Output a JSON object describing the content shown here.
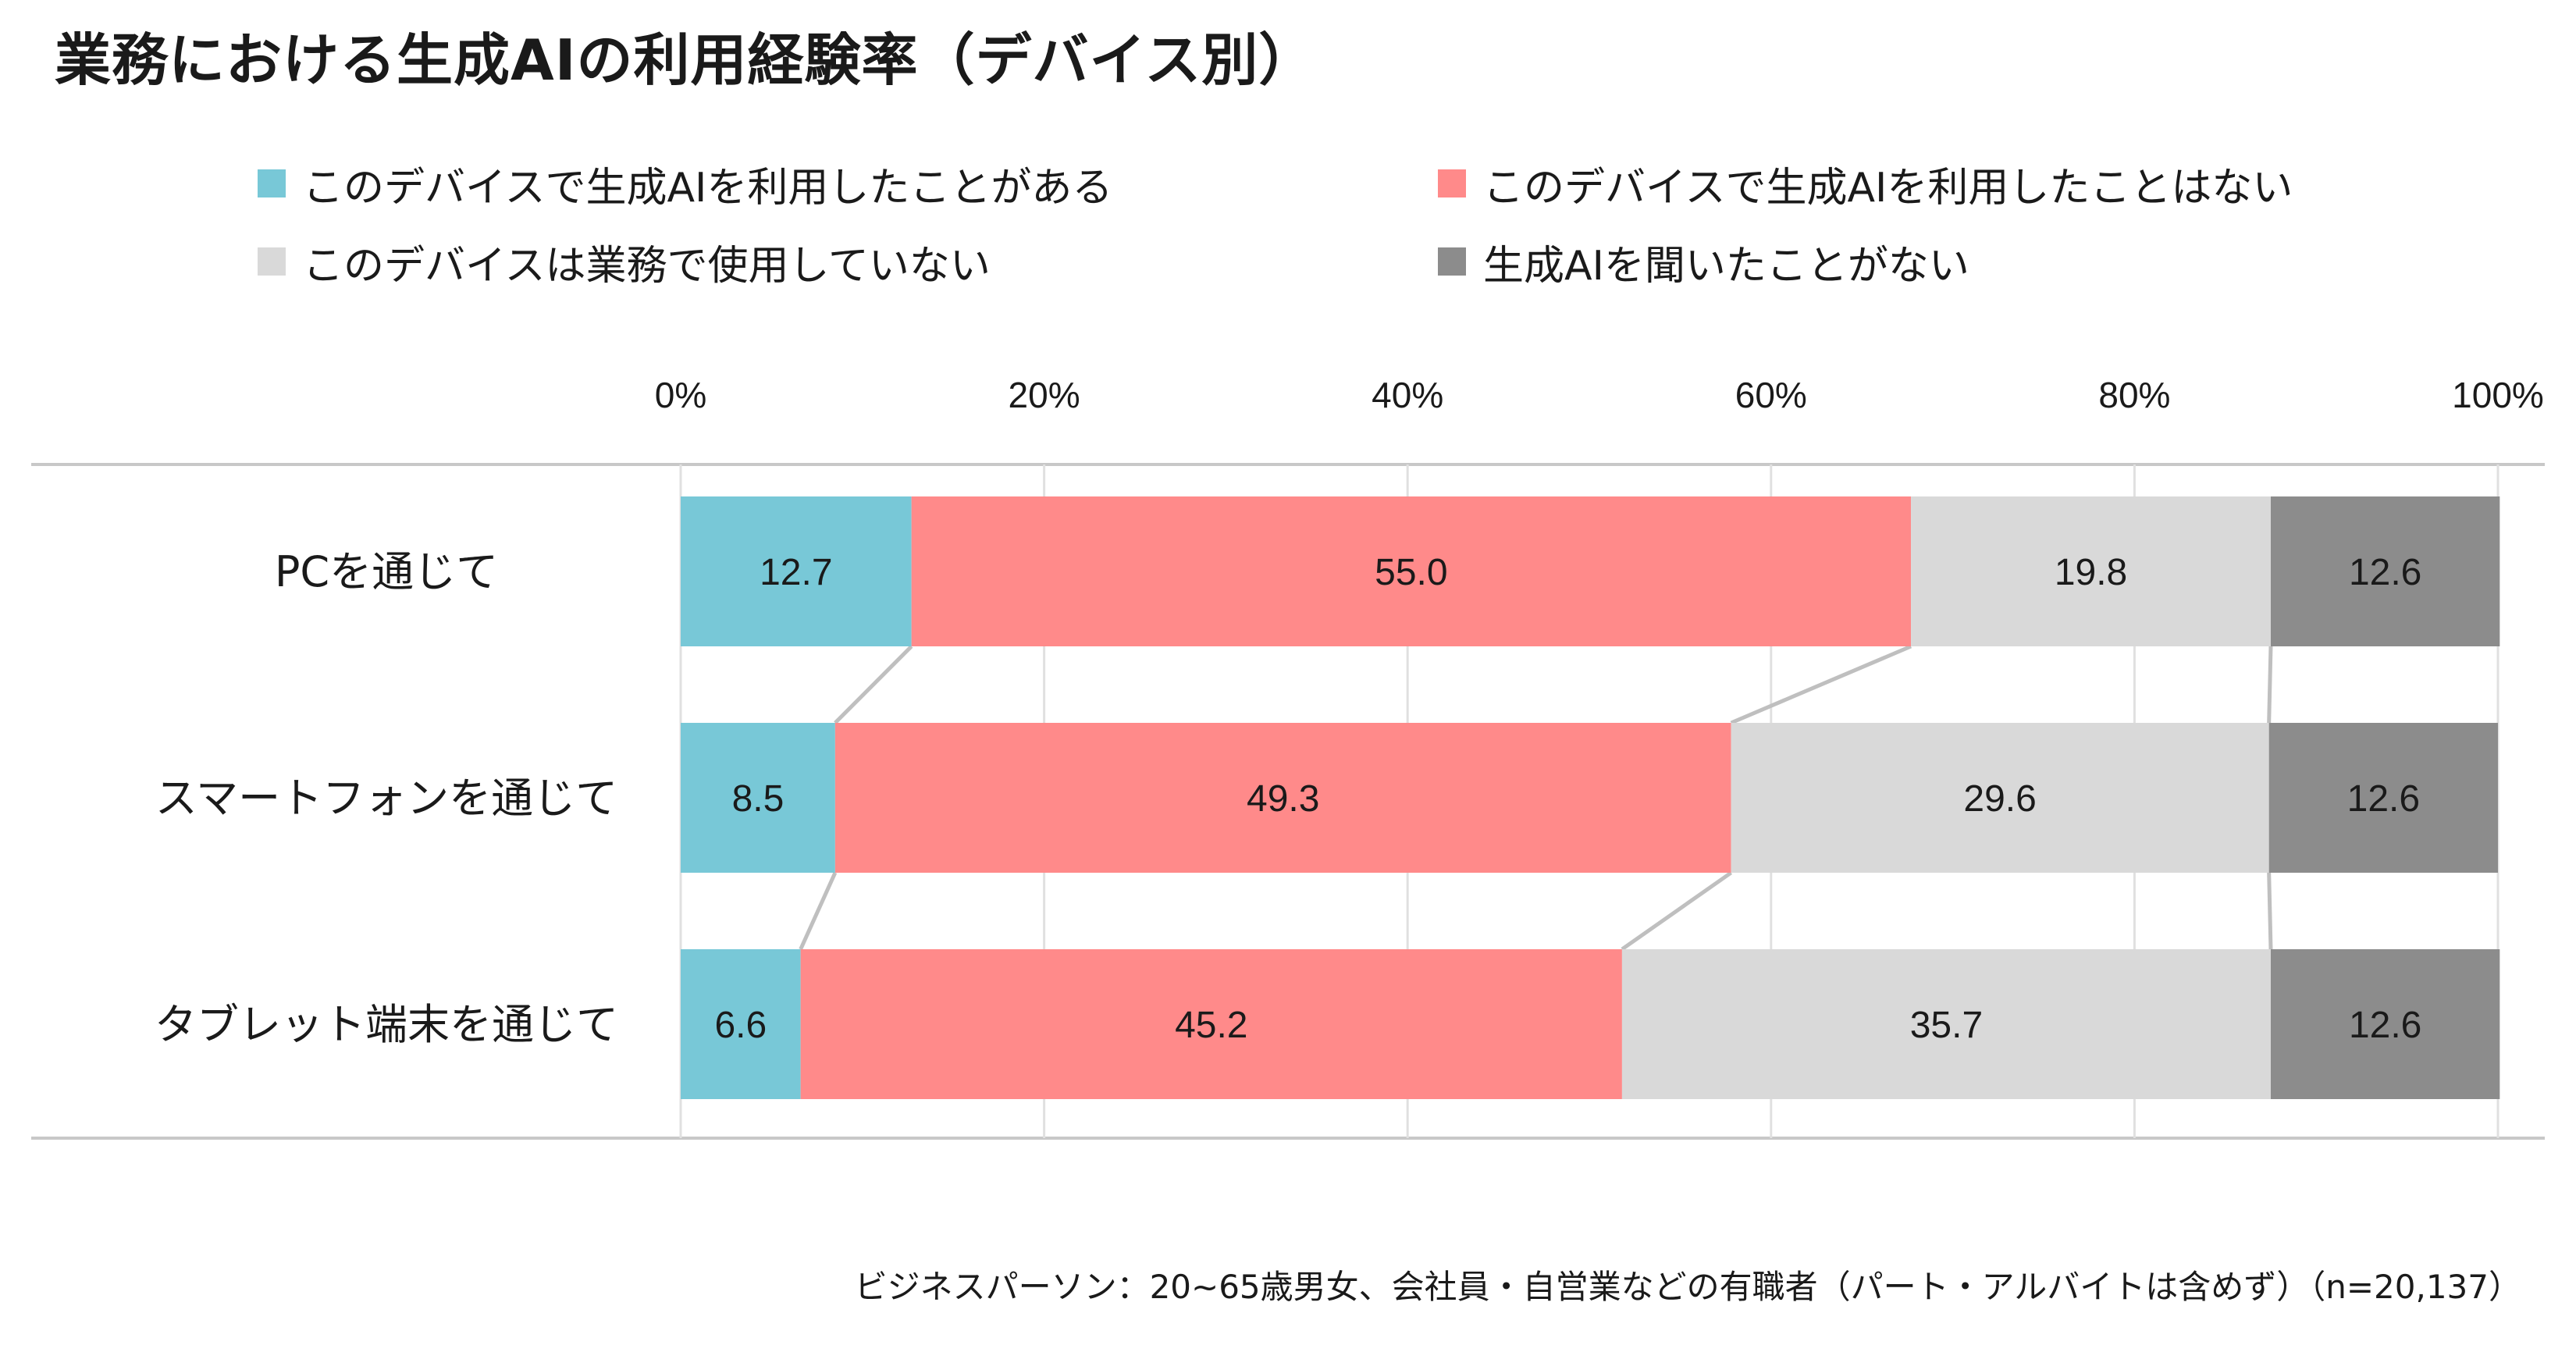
{
  "title": "業務における生成AIの利用経験率（デバイス別）",
  "note": "ビジネスパーソン：20~65歳男女、会社員・自営業などの有職者（パート・アルバイトは含めず）（n=20,137）",
  "colors": {
    "used": "#78C8D7",
    "not_used": "#FF8A8A",
    "not_for_work": "#D9D9D9",
    "never_heard": "#8C8C8C",
    "connector": "#BFBFBF",
    "gridline": "#E0E0E0",
    "axis_border": "#C8C8C8"
  },
  "chart_data": {
    "type": "bar",
    "orientation": "horizontal",
    "stacked": true,
    "title": "業務における生成AIの利用経験率（デバイス別）",
    "categories": [
      "PCを通じて",
      "スマートフォンを通じて",
      "タブレット端末を通じて"
    ],
    "series": [
      {
        "name": "このデバイスで生成AIを利用したことがある",
        "color_key": "used",
        "values": [
          12.7,
          8.5,
          6.6
        ]
      },
      {
        "name": "このデバイスで生成AIを利用したことはない",
        "color_key": "not_used",
        "values": [
          55.0,
          49.3,
          45.2
        ]
      },
      {
        "name": "このデバイスは業務で使用していない",
        "color_key": "not_for_work",
        "values": [
          19.8,
          29.6,
          35.7
        ]
      },
      {
        "name": "生成AIを聞いたことがない",
        "color_key": "never_heard",
        "values": [
          12.6,
          12.6,
          12.6
        ]
      }
    ],
    "data_labels": [
      [
        "12.7",
        "8.5",
        "6.6"
      ],
      [
        "55.0",
        "49.3",
        "45.2"
      ],
      [
        "19.8",
        "29.6",
        "35.7"
      ],
      [
        "12.6",
        "12.6",
        "12.6"
      ]
    ],
    "xlim": [
      0,
      100
    ],
    "xticks": [
      "0%",
      "20%",
      "40%",
      "60%",
      "80%",
      "100%"
    ],
    "xtick_values": [
      0,
      20,
      40,
      60,
      80,
      100
    ],
    "grid": true,
    "legend_position": "top",
    "series_connectors": true
  }
}
